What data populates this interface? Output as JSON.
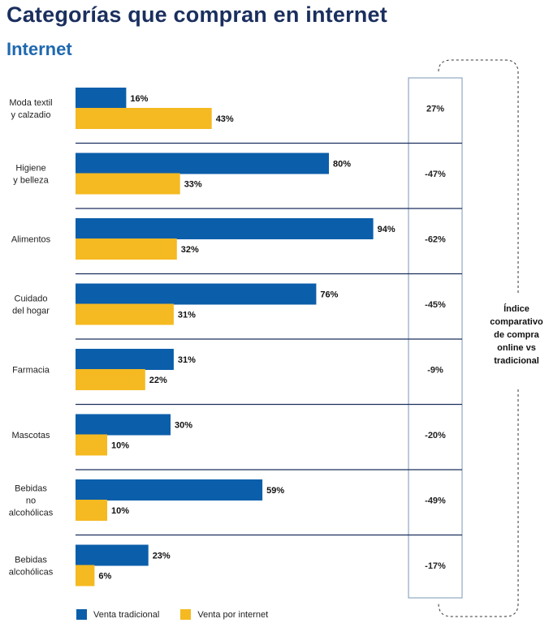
{
  "header": {
    "title": "Categorías que compran en internet",
    "subtitle": "Internet"
  },
  "colors": {
    "traditional": "#0b5eaa",
    "internet": "#f5b921",
    "title": "#1b2f5e",
    "subtitle": "#1f68b0",
    "separator": "#1b2f5e",
    "index_box": "#8fa8c3"
  },
  "chart_data": {
    "type": "bar",
    "orientation": "horizontal",
    "title": "Categorías que compran en internet",
    "subtitle": "Internet",
    "unit": "%",
    "xlim": [
      0,
      100
    ],
    "categories": [
      [
        "Moda textil",
        "y calzadio"
      ],
      [
        "Higiene",
        "y belleza"
      ],
      [
        "Alimentos"
      ],
      [
        "Cuidado",
        "del hogar"
      ],
      [
        "Farmacia"
      ],
      [
        "Mascotas"
      ],
      [
        "Bebidas",
        "no",
        "alcohólicas"
      ],
      [
        "Bebidas",
        "alcohólicas"
      ]
    ],
    "series": [
      {
        "name": "Venta tradicional",
        "values": [
          16,
          80,
          94,
          76,
          31,
          30,
          59,
          23
        ],
        "labels": [
          "16%",
          "80%",
          "94%",
          "76%",
          "31%",
          "30%",
          "59%",
          "23%"
        ]
      },
      {
        "name": "Venta por internet",
        "values": [
          43,
          33,
          32,
          31,
          22,
          10,
          10,
          6
        ],
        "labels": [
          "43%",
          "33%",
          "32%",
          "31%",
          "22%",
          "10%",
          "10%",
          "6%"
        ]
      }
    ],
    "index": {
      "values": [
        27,
        -47,
        -62,
        -45,
        -9,
        -20,
        -49,
        -17
      ],
      "labels": [
        "27%",
        "-47%",
        "-62%",
        "-45%",
        "-9%",
        "-20%",
        "-49%",
        "-17%"
      ],
      "note": [
        "Índice",
        "comparativo",
        "de compra",
        "online vs",
        "tradicional"
      ]
    }
  }
}
